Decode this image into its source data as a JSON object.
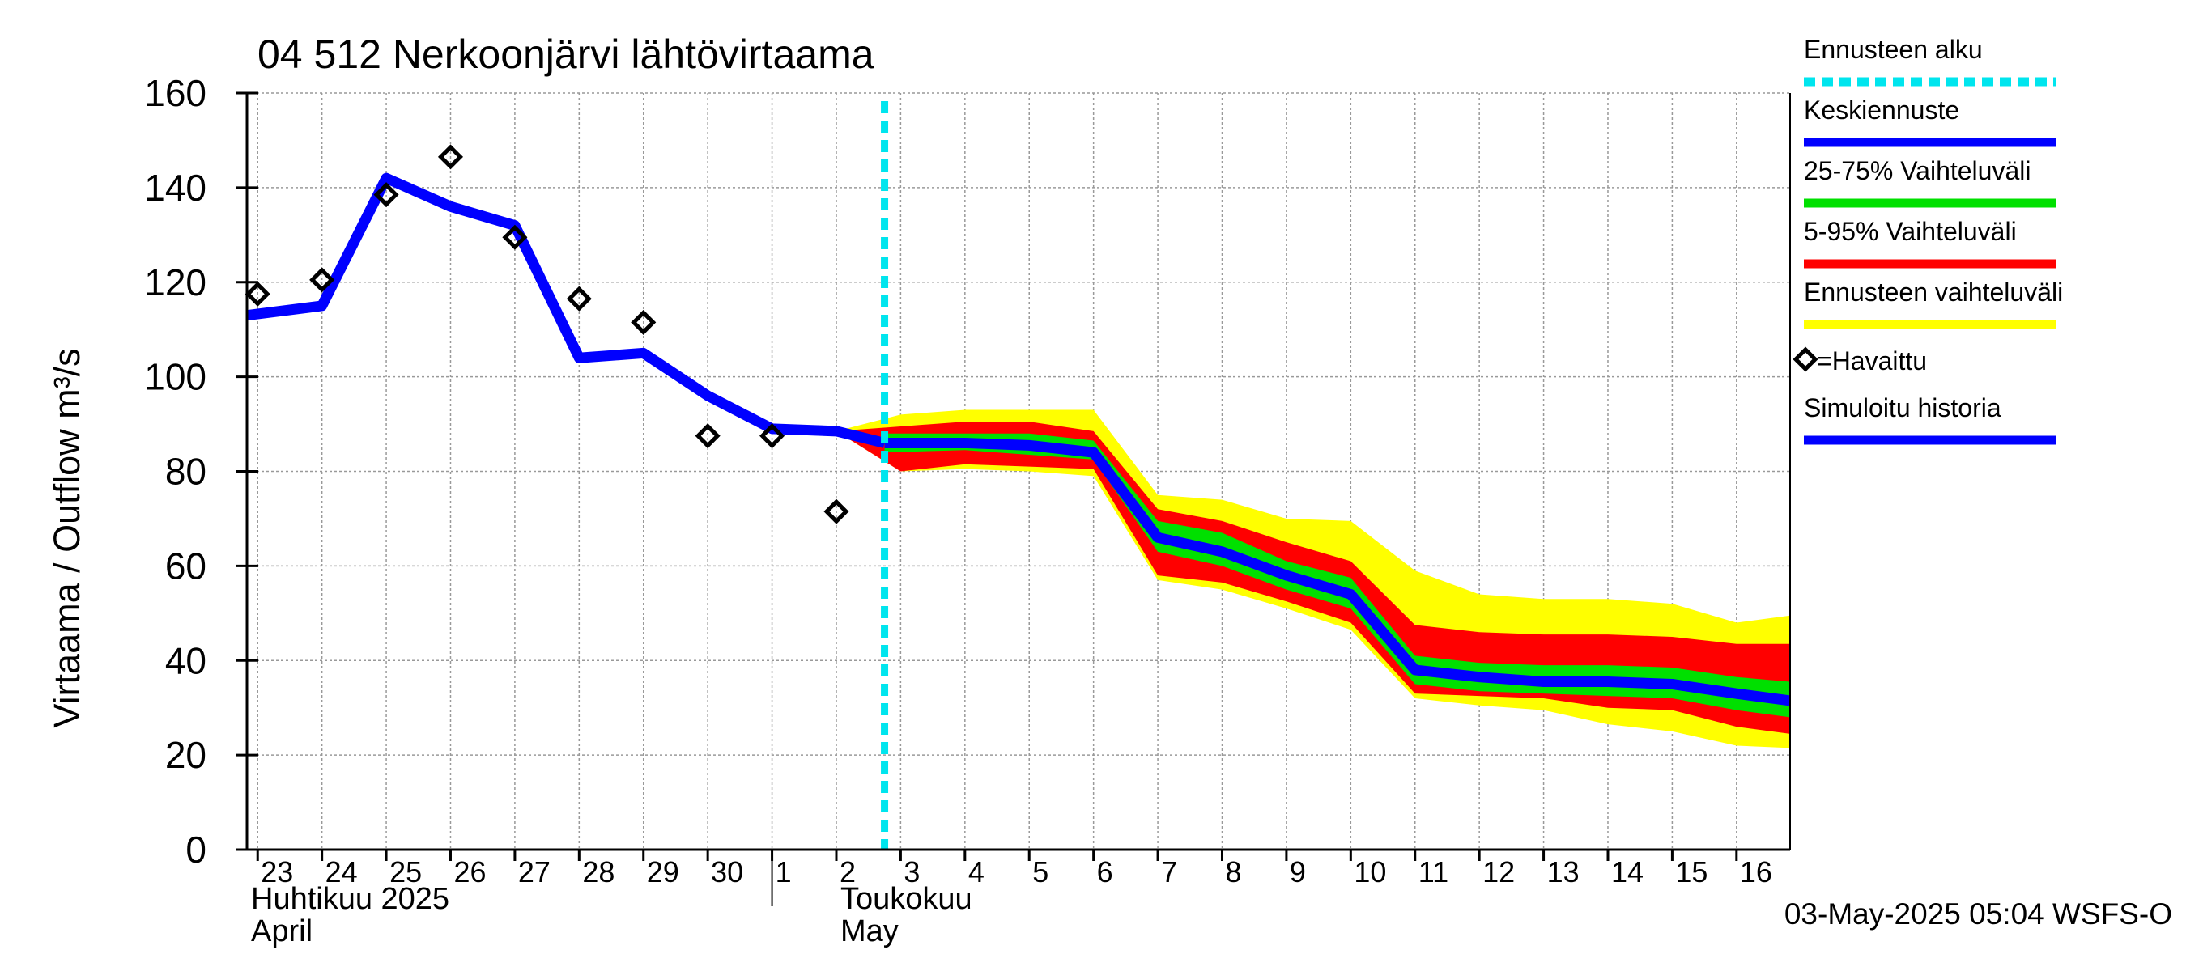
{
  "chart_data": {
    "type": "area",
    "title": "04 512 Nerkoonjärvi lähtövirtaama",
    "ylabel": "Virtaama / Outflow    m³/s",
    "ylim": [
      0,
      160
    ],
    "yticks": [
      0,
      20,
      40,
      60,
      80,
      100,
      120,
      140,
      160
    ],
    "xlim": [
      "2025-04-22T20:00",
      "2025-05-16T20:00"
    ],
    "x_tick_labels": [
      "23",
      "24",
      "25",
      "26",
      "27",
      "28",
      "29",
      "30",
      "1",
      "2",
      "3",
      "4",
      "5",
      "6",
      "7",
      "8",
      "9",
      "10",
      "11",
      "12",
      "13",
      "14",
      "15",
      "16"
    ],
    "x_tick_dates": [
      "2025-04-23",
      "2025-04-24",
      "2025-04-25",
      "2025-04-26",
      "2025-04-27",
      "2025-04-28",
      "2025-04-29",
      "2025-04-30",
      "2025-05-01",
      "2025-05-02",
      "2025-05-03",
      "2025-05-04",
      "2025-05-05",
      "2025-05-06",
      "2025-05-07",
      "2025-05-08",
      "2025-05-09",
      "2025-05-10",
      "2025-05-11",
      "2025-05-12",
      "2025-05-13",
      "2025-05-14",
      "2025-05-15",
      "2025-05-16"
    ],
    "month_labels": [
      {
        "line1": "Huhtikuu  2025",
        "line2": "April"
      },
      {
        "line1": "Toukokuu",
        "line2": "May"
      }
    ],
    "month_boundary": "2025-05-01",
    "forecast_start": "2025-05-02T18:00",
    "grid": true,
    "legend_position": "right",
    "series": [
      {
        "name": "Simuloitu historia",
        "kind": "line",
        "color": "#0000ff",
        "x": [
          "2025-04-22T20:00",
          "2025-04-24T00:00",
          "2025-04-25T00:00",
          "2025-04-26T00:00",
          "2025-04-27T00:00",
          "2025-04-28T00:00",
          "2025-04-29T00:00",
          "2025-04-30T00:00",
          "2025-05-01T00:00",
          "2025-05-02T00:00",
          "2025-05-02T18:00"
        ],
        "y": [
          113,
          115,
          142,
          136,
          132,
          104,
          105,
          96,
          89,
          88.5,
          86
        ]
      },
      {
        "name": "Keskiennuste",
        "kind": "line",
        "color": "#0000ff",
        "x": [
          "2025-05-02T18:00",
          "2025-05-04T00:00",
          "2025-05-05T00:00",
          "2025-05-06T00:00",
          "2025-05-07T00:00",
          "2025-05-08T00:00",
          "2025-05-09T00:00",
          "2025-05-10T00:00",
          "2025-05-11T00:00",
          "2025-05-12T00:00",
          "2025-05-13T00:00",
          "2025-05-14T00:00",
          "2025-05-15T00:00",
          "2025-05-16T00:00",
          "2025-05-16T20:00"
        ],
        "y": [
          86,
          86,
          85.5,
          84,
          66,
          63,
          58,
          54,
          38,
          36.5,
          35.5,
          35.5,
          35,
          33,
          31.5
        ]
      },
      {
        "name": "Havaittu",
        "kind": "scatter",
        "marker": "diamond",
        "color": "#000000",
        "x": [
          "2025-04-23T00:00",
          "2025-04-24T00:00",
          "2025-04-25T00:00",
          "2025-04-26T00:00",
          "2025-04-27T00:00",
          "2025-04-28T00:00",
          "2025-04-29T00:00",
          "2025-04-30T00:00",
          "2025-05-01T00:00",
          "2025-05-02T00:00"
        ],
        "y": [
          117.5,
          120.5,
          138.5,
          146.5,
          129.5,
          116.5,
          111.5,
          87.5,
          87.5,
          71.5
        ]
      }
    ],
    "bands": [
      {
        "name": "Ennusteen vaihteluväli",
        "color": "#ffff00",
        "x": [
          "2025-05-02T00:00",
          "2025-05-03T00:00",
          "2025-05-04T00:00",
          "2025-05-05T00:00",
          "2025-05-06T00:00",
          "2025-05-07T00:00",
          "2025-05-08T00:00",
          "2025-05-09T00:00",
          "2025-05-10T00:00",
          "2025-05-11T00:00",
          "2025-05-12T00:00",
          "2025-05-13T00:00",
          "2025-05-14T00:00",
          "2025-05-15T00:00",
          "2025-05-16T00:00",
          "2025-05-16T20:00"
        ],
        "upper": [
          88.5,
          92,
          93,
          93,
          93,
          75,
          74,
          70,
          69.5,
          59,
          54,
          53,
          53,
          52,
          48,
          49.5
        ],
        "lower": [
          88.5,
          80,
          80.5,
          80,
          79,
          57,
          55,
          51,
          46.5,
          32,
          30.5,
          29.5,
          26.5,
          25,
          22,
          21.5
        ]
      },
      {
        "name": "5-95% Vaihteluväli",
        "color": "#ff0000",
        "x": [
          "2025-05-02T00:00",
          "2025-05-03T00:00",
          "2025-05-04T00:00",
          "2025-05-05T00:00",
          "2025-05-06T00:00",
          "2025-05-07T00:00",
          "2025-05-08T00:00",
          "2025-05-09T00:00",
          "2025-05-10T00:00",
          "2025-05-11T00:00",
          "2025-05-12T00:00",
          "2025-05-13T00:00",
          "2025-05-14T00:00",
          "2025-05-15T00:00",
          "2025-05-16T00:00",
          "2025-05-16T20:00"
        ],
        "upper": [
          88.5,
          89.5,
          90.5,
          90.5,
          88.5,
          72,
          69.5,
          65,
          61,
          47.5,
          46,
          45.5,
          45.5,
          45,
          43.5,
          43.5
        ],
        "lower": [
          88.5,
          80,
          81.5,
          81,
          80.5,
          58,
          56.5,
          52.5,
          48,
          33,
          32.5,
          32,
          30,
          29.5,
          26,
          24.5
        ]
      },
      {
        "name": "25-75% Vaihteluväli",
        "color": "#00e000",
        "x": [
          "2025-05-02T18:00",
          "2025-05-04T00:00",
          "2025-05-05T00:00",
          "2025-05-06T00:00",
          "2025-05-07T00:00",
          "2025-05-08T00:00",
          "2025-05-09T00:00",
          "2025-05-10T00:00",
          "2025-05-11T00:00",
          "2025-05-12T00:00",
          "2025-05-13T00:00",
          "2025-05-14T00:00",
          "2025-05-15T00:00",
          "2025-05-16T00:00",
          "2025-05-16T20:00"
        ],
        "upper": [
          88,
          88,
          88,
          86.5,
          69.5,
          67,
          61,
          57.5,
          41,
          39.5,
          39,
          39,
          38.5,
          36.5,
          35.5
        ],
        "lower": [
          84,
          84.5,
          83.5,
          82.5,
          63,
          60,
          55,
          51,
          35,
          33.5,
          33,
          32.5,
          32,
          29.5,
          28
        ]
      }
    ]
  },
  "legend": {
    "items": [
      {
        "label": "Ennusteen alku",
        "color": "#00e5ee",
        "style": "dashed"
      },
      {
        "label": "Keskiennuste",
        "color": "#0000ff",
        "style": "solid"
      },
      {
        "label": "25-75% Vaihteluväli",
        "color": "#00e000",
        "style": "solid"
      },
      {
        "label": "5-95% Vaihteluväli",
        "color": "#ff0000",
        "style": "solid"
      },
      {
        "label": "Ennusteen vaihteluväli",
        "color": "#ffff00",
        "style": "solid"
      },
      {
        "label": "=Havaittu",
        "color": "#000000",
        "style": "marker"
      },
      {
        "label": "Simuloitu historia",
        "color": "#0000ff",
        "style": "solid"
      }
    ]
  },
  "footer": {
    "timestamp": "03-May-2025 05:04 WSFS-O"
  }
}
